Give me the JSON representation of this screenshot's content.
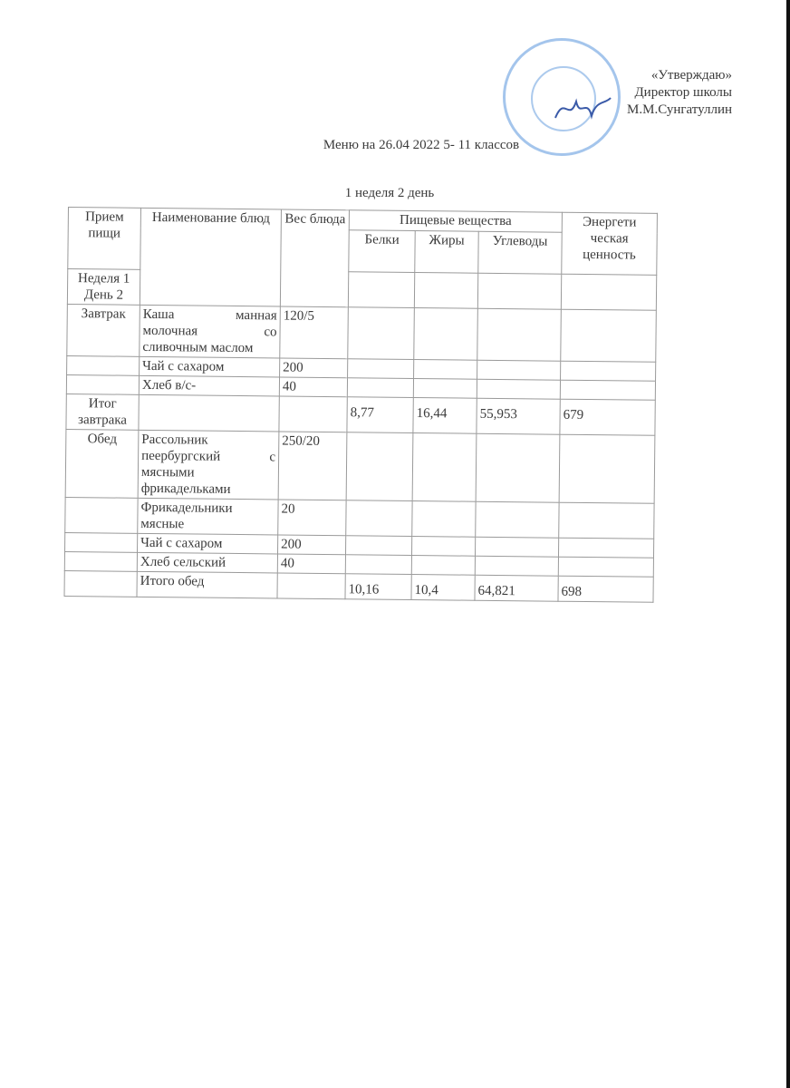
{
  "approval": {
    "line1": "«Утверждаю»",
    "line2": "Директор школы",
    "line3": "М.М.Сунгатуллин"
  },
  "title": "Меню на 26.04 2022 5- 11   классов",
  "subtitle": "1 неделя 2 день",
  "table": {
    "headers": {
      "meal": "Прием пищи",
      "dish": "Наименование блюд",
      "weight": "Вес блюда",
      "nutrients": "Пищевые вещества",
      "protein": "Белки",
      "fat": "Жиры",
      "carbs": "Углеводы",
      "energy": "Энергети ческая ценность",
      "week_day": "Неделя 1 День 2"
    },
    "rows": [
      {
        "meal": "Завтрак",
        "dish": "Каша  манная молочная со сливочным маслом",
        "weight": "120/5"
      },
      {
        "meal": "",
        "dish": "Чай с сахаром",
        "weight": "200"
      },
      {
        "meal": "",
        "dish": "Хлеб в/с-",
        "weight": "40"
      },
      {
        "meal": "Итог завтрака",
        "dish": "",
        "weight": "",
        "protein": "8,77",
        "fat": "16,44",
        "carbs": "55,953",
        "energy": "679"
      },
      {
        "meal": "Обед",
        "dish": "Рассольник пеербургский с мясными фрикадельками",
        "weight": "250/20"
      },
      {
        "meal": "",
        "dish": "Фрикадельники мясные",
        "weight": "20"
      },
      {
        "meal": "",
        "dish": "Чай с сахаром",
        "weight": "200"
      },
      {
        "meal": "",
        "dish": "Хлеб      сельский",
        "weight": "40"
      },
      {
        "meal": "",
        "dish": "Итого обед",
        "weight": "",
        "protein": "10,16",
        "fat": "10,4",
        "carbs": "64,821",
        "energy": "698"
      }
    ]
  },
  "colors": {
    "stamp": "#5a96dc",
    "ink": "#3a3a3a"
  }
}
